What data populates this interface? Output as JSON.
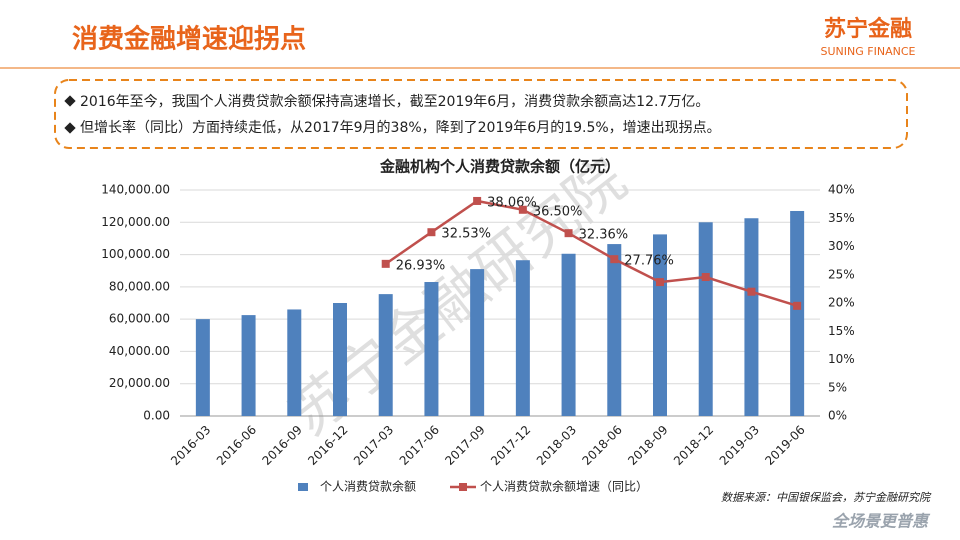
{
  "header": {
    "title": "消费金融增速迎拐点",
    "logo": "苏宁金融",
    "logo_sub": "SUNING FINANCE"
  },
  "bullets": [
    "2016年至今，我国个人消费贷款余额保持高速增长，截至2019年6月，消费贷款余额高达12.7万亿。",
    "但增长率（同比）方面持续走低，从2017年9月的38%，降到了2019年6月的19.5%，增速出现拐点。"
  ],
  "chart_data": {
    "type": "bar",
    "title": "金融机构个人消费贷款余额（亿元）",
    "categories": [
      "2016-03",
      "2016-06",
      "2016-09",
      "2016-12",
      "2017-03",
      "2017-06",
      "2017-09",
      "2017-12",
      "2018-03",
      "2018-06",
      "2018-09",
      "2018-12",
      "2019-03",
      "2019-06"
    ],
    "series": [
      {
        "name": "个人消费贷款余额",
        "type": "bar",
        "color": "#4f81bd",
        "values": [
          60000,
          62500,
          66000,
          70000,
          75500,
          83000,
          91000,
          96500,
          100500,
          106500,
          112500,
          120000,
          122500,
          127000
        ]
      },
      {
        "name": "个人消费贷款余额增速（同比）",
        "type": "line",
        "axis": "y2",
        "color": "#c0504d",
        "values": [
          null,
          null,
          null,
          null,
          26.93,
          32.53,
          38.06,
          36.5,
          32.36,
          27.76,
          23.7,
          24.6,
          22.0,
          19.5
        ],
        "value_labels": [
          null,
          null,
          null,
          null,
          "26.93%",
          "32.53%",
          "38.06%",
          "36.50%",
          "32.36%",
          "27.76%",
          null,
          null,
          null,
          null
        ]
      }
    ],
    "ylim": [
      0,
      140000
    ],
    "yticks": [
      {
        "value": 0,
        "label": "0.00"
      },
      {
        "value": 20000,
        "label": "20,000.00"
      },
      {
        "value": 40000,
        "label": "40,000.00"
      },
      {
        "value": 60000,
        "label": "60,000.00"
      },
      {
        "value": 80000,
        "label": "80,000.00"
      },
      {
        "value": 100000,
        "label": "100,000.00"
      },
      {
        "value": 120000,
        "label": "120,000.00"
      },
      {
        "value": 140000,
        "label": "140,000.00"
      }
    ],
    "y2lim": [
      0,
      40
    ],
    "y2ticks": [
      {
        "value": 0,
        "label": "0%"
      },
      {
        "value": 5,
        "label": "5%"
      },
      {
        "value": 10,
        "label": "10%"
      },
      {
        "value": 15,
        "label": "15%"
      },
      {
        "value": 20,
        "label": "20%"
      },
      {
        "value": 25,
        "label": "25%"
      },
      {
        "value": 30,
        "label": "30%"
      },
      {
        "value": 35,
        "label": "35%"
      },
      {
        "value": 40,
        "label": "40%"
      }
    ],
    "grid": true,
    "legend": "bottom"
  },
  "source": "数据来源：中国银保监会，苏宁金融研究院",
  "watermark": "苏宁金融研究院",
  "footer_logo": "全场景更普惠"
}
